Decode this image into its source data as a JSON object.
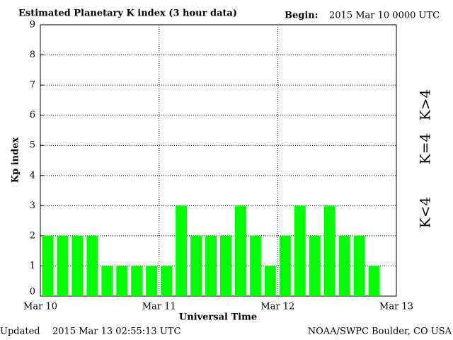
{
  "chart_data": {
    "type": "bar",
    "title": "Estimated Planetary K index (3 hour data)",
    "begin_label": "Begin:",
    "begin": "2015 Mar 10 0000 UTC",
    "updated_label": "Updated",
    "updated": "2015 Mar 13 02:55:13 UTC",
    "source": "NOAA/SWPC Boulder, CO USA",
    "y_label": "Kp index",
    "x_label": "Universal Time",
    "x": [
      0,
      3,
      6,
      9,
      12,
      15,
      18,
      21,
      24,
      27,
      30,
      33,
      36,
      39,
      42,
      45,
      48,
      51,
      54,
      57,
      60,
      63,
      66
    ],
    "bar_width": 3,
    "values": [
      2,
      2,
      2,
      2,
      1,
      1,
      1,
      1,
      1,
      3,
      2,
      2,
      2,
      3,
      2,
      1,
      2,
      3,
      2,
      3,
      2,
      2,
      1
    ],
    "color": "#00ff00",
    "xlim": [
      0,
      72
    ],
    "xticks": [
      {
        "value": 0,
        "label": "Mar 10"
      },
      {
        "value": 24,
        "label": "Mar 11"
      },
      {
        "value": 48,
        "label": "Mar 12"
      },
      {
        "value": 72,
        "label": "Mar 13"
      }
    ],
    "ylim": [
      0,
      9
    ],
    "yticks": [
      0,
      1,
      2,
      3,
      4,
      5,
      6,
      7,
      8,
      9
    ],
    "grid": true,
    "legend": [
      {
        "name": "K<4",
        "color": "#00ff00"
      },
      {
        "name": "K=4",
        "color": "#ffd700"
      },
      {
        "name": "K>4",
        "color": "#ff2000"
      }
    ]
  }
}
